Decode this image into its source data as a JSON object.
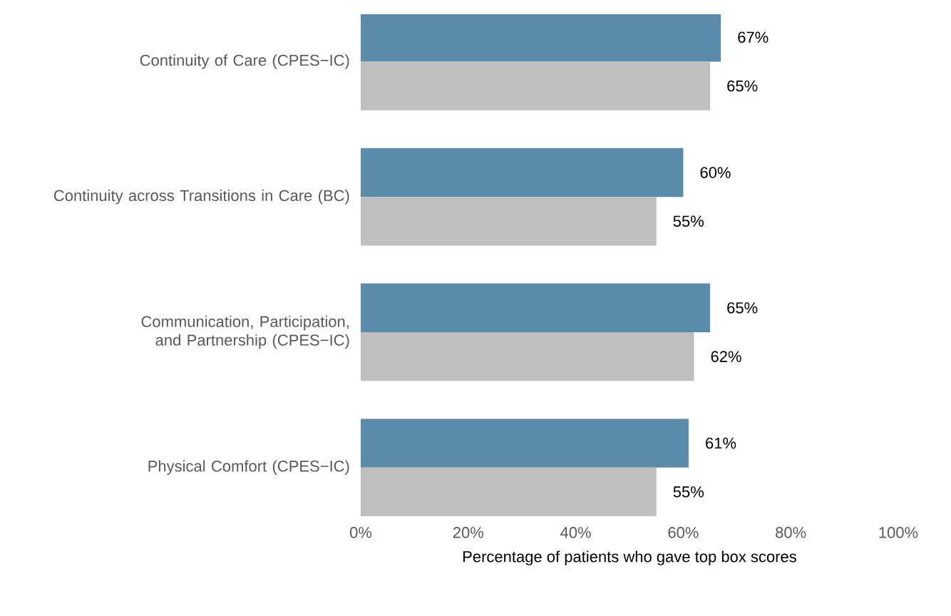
{
  "chart_data": {
    "type": "bar",
    "orientation": "horizontal",
    "xlabel": "Percentage of patients who gave top box scores",
    "categories": [
      "Continuity of Care (CPES−IC)",
      "Continuity across Transitions in Care (BC)",
      "Communication, Participation, and Partnership (CPES−IC)",
      "Physical Comfort (CPES−IC)"
    ],
    "series": [
      {
        "color": "#5b8bab",
        "values": [
          67,
          60,
          65,
          61
        ],
        "value_labels": [
          "67%",
          "60%",
          "65%",
          "61%"
        ]
      },
      {
        "color": "#bfbfbf",
        "values": [
          65,
          55,
          62,
          55
        ],
        "value_labels": [
          "65%",
          "55%",
          "62%",
          "55%"
        ]
      }
    ],
    "xlim": [
      0,
      100
    ],
    "xticks": [
      {
        "value": 0,
        "label": "0%"
      },
      {
        "value": 20,
        "label": "20%"
      },
      {
        "value": 40,
        "label": "40%"
      },
      {
        "value": 60,
        "label": "60%"
      },
      {
        "value": 80,
        "label": "80%"
      },
      {
        "value": 100,
        "label": "100%"
      }
    ]
  }
}
